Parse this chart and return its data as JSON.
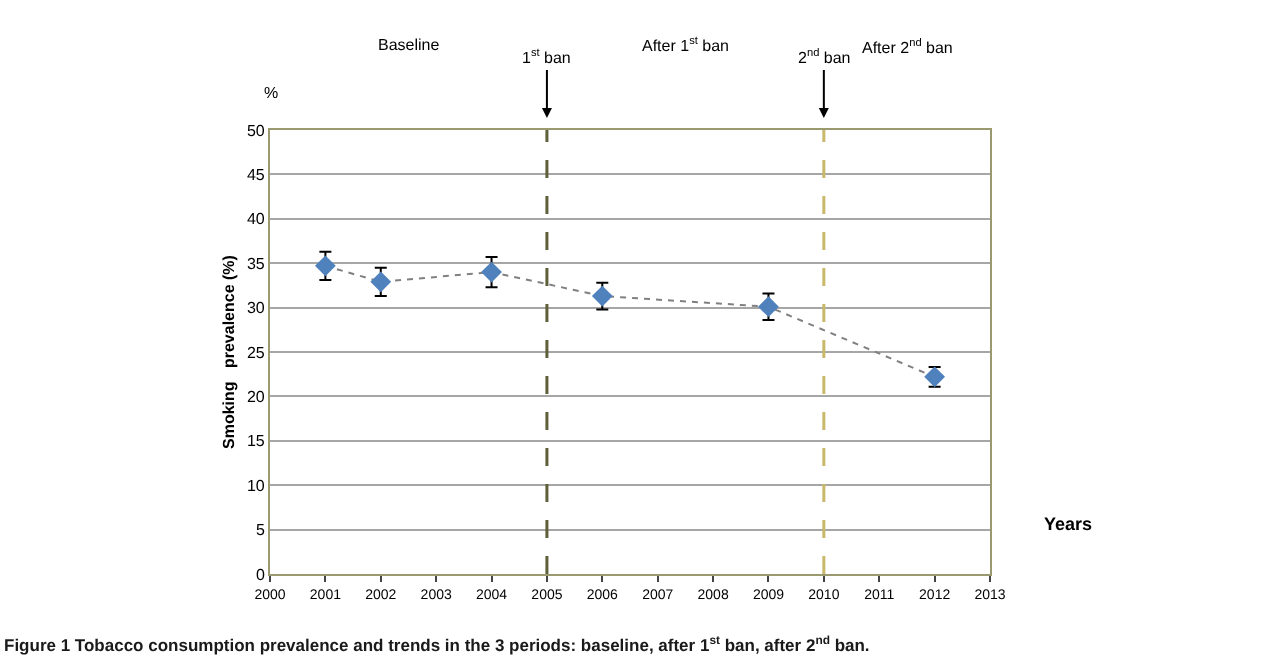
{
  "chart_data": {
    "type": "line",
    "xlabel": "Years",
    "ylabel": "Smoking   prevalence (%)",
    "x": [
      2001,
      2002,
      2004,
      2006,
      2009,
      2012
    ],
    "series": [
      {
        "color": "#808080",
        "colors": [
          "#4f81bd",
          "#4f81bd",
          "#4f81bd",
          "#4f81bd",
          "#4f81bd",
          "#4f81bd"
        ],
        "values": [
          34.7,
          32.9,
          34.0,
          31.3,
          30.1,
          22.2
        ],
        "errors": [
          1.6,
          1.6,
          1.7,
          1.5,
          1.5,
          1.1
        ]
      }
    ],
    "xlim": [
      2000,
      2013
    ],
    "xticks": [
      2000,
      2001,
      2002,
      2003,
      2004,
      2005,
      2006,
      2007,
      2008,
      2009,
      2010,
      2011,
      2012,
      2013
    ],
    "ylim": [
      0,
      50
    ],
    "yticks": [
      0,
      5,
      10,
      15,
      20,
      25,
      30,
      35,
      40,
      45,
      50
    ],
    "ref_lines": [
      {
        "axis": "x",
        "value": 2005,
        "label": "1$^{st}$ ban",
        "color": "#5f5f3a",
        "line_style": "dashed"
      },
      {
        "axis": "x",
        "value": 2010,
        "label": "2$^{nd}$ ban",
        "color": "#c9b86a",
        "line_style": "dashed"
      }
    ],
    "annotations": [
      "Baseline",
      "After 1$^{st}$ ban",
      "After 2$^{nd}$ ban",
      "%",
      "Figure 1 Tobacco consumption prevalence and trends in the 3 periods: baseline, after 1$^{st}$ ban, after 2$^{nd}$ ban."
    ],
    "grid": "y",
    "marker": "diamond",
    "line_style": "dotted"
  }
}
